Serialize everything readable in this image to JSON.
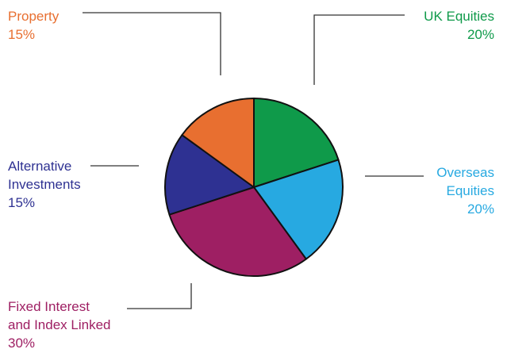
{
  "chart_data": {
    "type": "pie",
    "title": "",
    "slices": [
      {
        "name": "UK Equities",
        "value": 20,
        "label": "20%",
        "color": "#0f9a4a"
      },
      {
        "name": "Overseas Equities",
        "value": 20,
        "label": "20%",
        "color": "#27a9e1"
      },
      {
        "name": "Fixed Interest and Index Linked",
        "value": 30,
        "label": "30%",
        "color": "#9e1f63"
      },
      {
        "name": "Alternative Investments",
        "value": 15,
        "label": "15%",
        "color": "#2e3192"
      },
      {
        "name": "Property",
        "value": 15,
        "label": "15%",
        "color": "#e86f30"
      }
    ],
    "outline_color": "#111111",
    "leader_color": "#333333",
    "legend": "none"
  }
}
